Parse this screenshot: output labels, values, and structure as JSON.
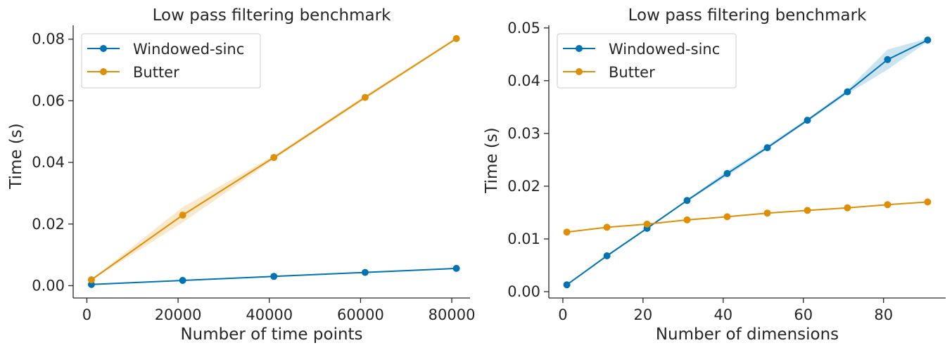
{
  "chart_data": [
    {
      "type": "line",
      "title": "Low pass filtering benchmark",
      "xlabel": "Number of time points",
      "ylabel": "Time (s)",
      "xlim": [
        -3000,
        84000
      ],
      "ylim": [
        -0.004,
        0.0845
      ],
      "xticks": [
        0,
        20000,
        40000,
        60000,
        80000
      ],
      "xtick_labels": [
        "0",
        "20000",
        "40000",
        "60000",
        "80000"
      ],
      "yticks": [
        0.0,
        0.02,
        0.04,
        0.06,
        0.08
      ],
      "ytick_labels": [
        "0.00",
        "0.02",
        "0.04",
        "0.06",
        "0.08"
      ],
      "legend_position": "top-left",
      "grid": false,
      "x": [
        1000,
        21000,
        41000,
        61000,
        81000
      ],
      "series": [
        {
          "name": "Windowed-sinc",
          "color": "#0173b2",
          "values": [
            0.0004,
            0.0017,
            0.003,
            0.0043,
            0.0056
          ],
          "ci_low": [
            0.0003,
            0.0015,
            0.0028,
            0.0041,
            0.0054
          ],
          "ci_high": [
            0.0005,
            0.0019,
            0.0032,
            0.0045,
            0.0058
          ]
        },
        {
          "name": "Butter",
          "color": "#de8f05",
          "values": [
            0.0019,
            0.0229,
            0.0416,
            0.0611,
            0.0802
          ],
          "ci_low": [
            0.0017,
            0.0205,
            0.041,
            0.0605,
            0.0798
          ],
          "ci_high": [
            0.0021,
            0.0255,
            0.0422,
            0.0617,
            0.0806
          ]
        }
      ]
    },
    {
      "type": "line",
      "title": "Low pass filtering benchmark",
      "xlabel": "Number of dimensions",
      "ylabel": "Time (s)",
      "xlim": [
        -3.5,
        95.5
      ],
      "ylim": [
        -0.0012,
        0.0505
      ],
      "xticks": [
        0,
        20,
        40,
        60,
        80
      ],
      "xtick_labels": [
        "0",
        "20",
        "40",
        "60",
        "80"
      ],
      "yticks": [
        0.0,
        0.01,
        0.02,
        0.03,
        0.04,
        0.05
      ],
      "ytick_labels": [
        "0.00",
        "0.01",
        "0.02",
        "0.03",
        "0.04",
        "0.05"
      ],
      "legend_position": "top-left",
      "grid": false,
      "x": [
        1,
        11,
        21,
        31,
        41,
        51,
        61,
        71,
        81,
        91
      ],
      "series": [
        {
          "name": "Windowed-sinc",
          "color": "#0173b2",
          "values": [
            0.0013,
            0.0068,
            0.012,
            0.0173,
            0.0224,
            0.0273,
            0.0325,
            0.0379,
            0.044,
            0.0477
          ],
          "ci_low": [
            0.0012,
            0.0066,
            0.0118,
            0.0171,
            0.0219,
            0.027,
            0.0322,
            0.0375,
            0.0421,
            0.0474
          ],
          "ci_high": [
            0.0014,
            0.007,
            0.0122,
            0.0175,
            0.0229,
            0.0277,
            0.0328,
            0.0383,
            0.0459,
            0.048
          ]
        },
        {
          "name": "Butter",
          "color": "#de8f05",
          "values": [
            0.0113,
            0.0122,
            0.0128,
            0.0136,
            0.0142,
            0.0149,
            0.0154,
            0.0159,
            0.0165,
            0.017
          ],
          "ci_low": [
            0.0112,
            0.0121,
            0.0127,
            0.0135,
            0.0141,
            0.0148,
            0.0153,
            0.0158,
            0.0164,
            0.0169
          ],
          "ci_high": [
            0.0114,
            0.0123,
            0.0129,
            0.0137,
            0.0143,
            0.015,
            0.0155,
            0.016,
            0.0166,
            0.0171
          ]
        }
      ]
    }
  ]
}
